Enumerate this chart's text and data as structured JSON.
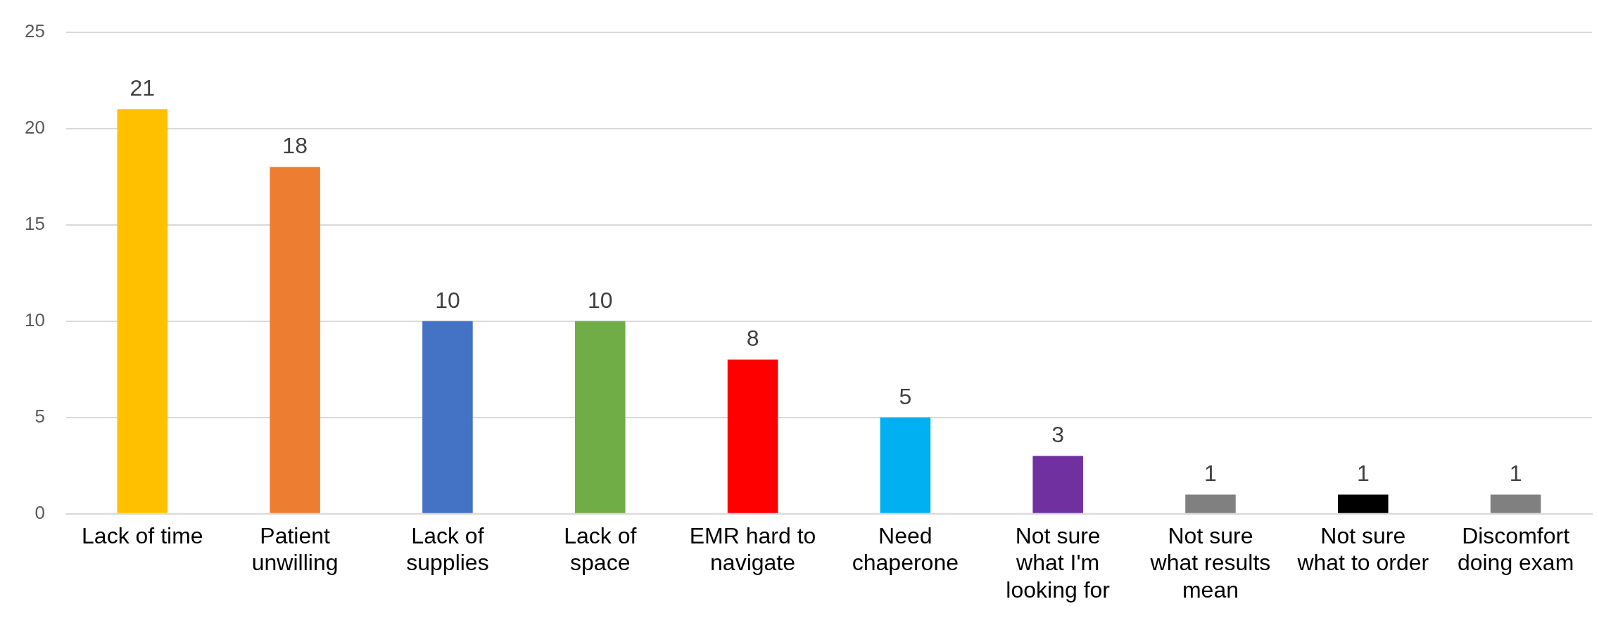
{
  "chart_data": {
    "type": "bar",
    "categories": [
      "Lack of time",
      "Patient unwilling",
      "Lack of supplies",
      "Lack of space",
      "EMR hard to navigate",
      "Need chaperone",
      "Not sure what I'm looking for",
      "Not sure what results mean",
      "Not sure what to order",
      "Discomfort doing exam"
    ],
    "values": [
      21,
      18,
      10,
      10,
      8,
      5,
      3,
      1,
      1,
      1
    ],
    "colors": [
      "#ffc000",
      "#ed7d31",
      "#4472c4",
      "#70ad47",
      "#ff0000",
      "#00b0f0",
      "#7030a0",
      "#808080",
      "#000000",
      "#808080"
    ],
    "ylim": [
      0,
      25
    ],
    "yticks": [
      0,
      5,
      10,
      15,
      20,
      25
    ],
    "grid": "y",
    "data_labels": true,
    "legend": false
  }
}
